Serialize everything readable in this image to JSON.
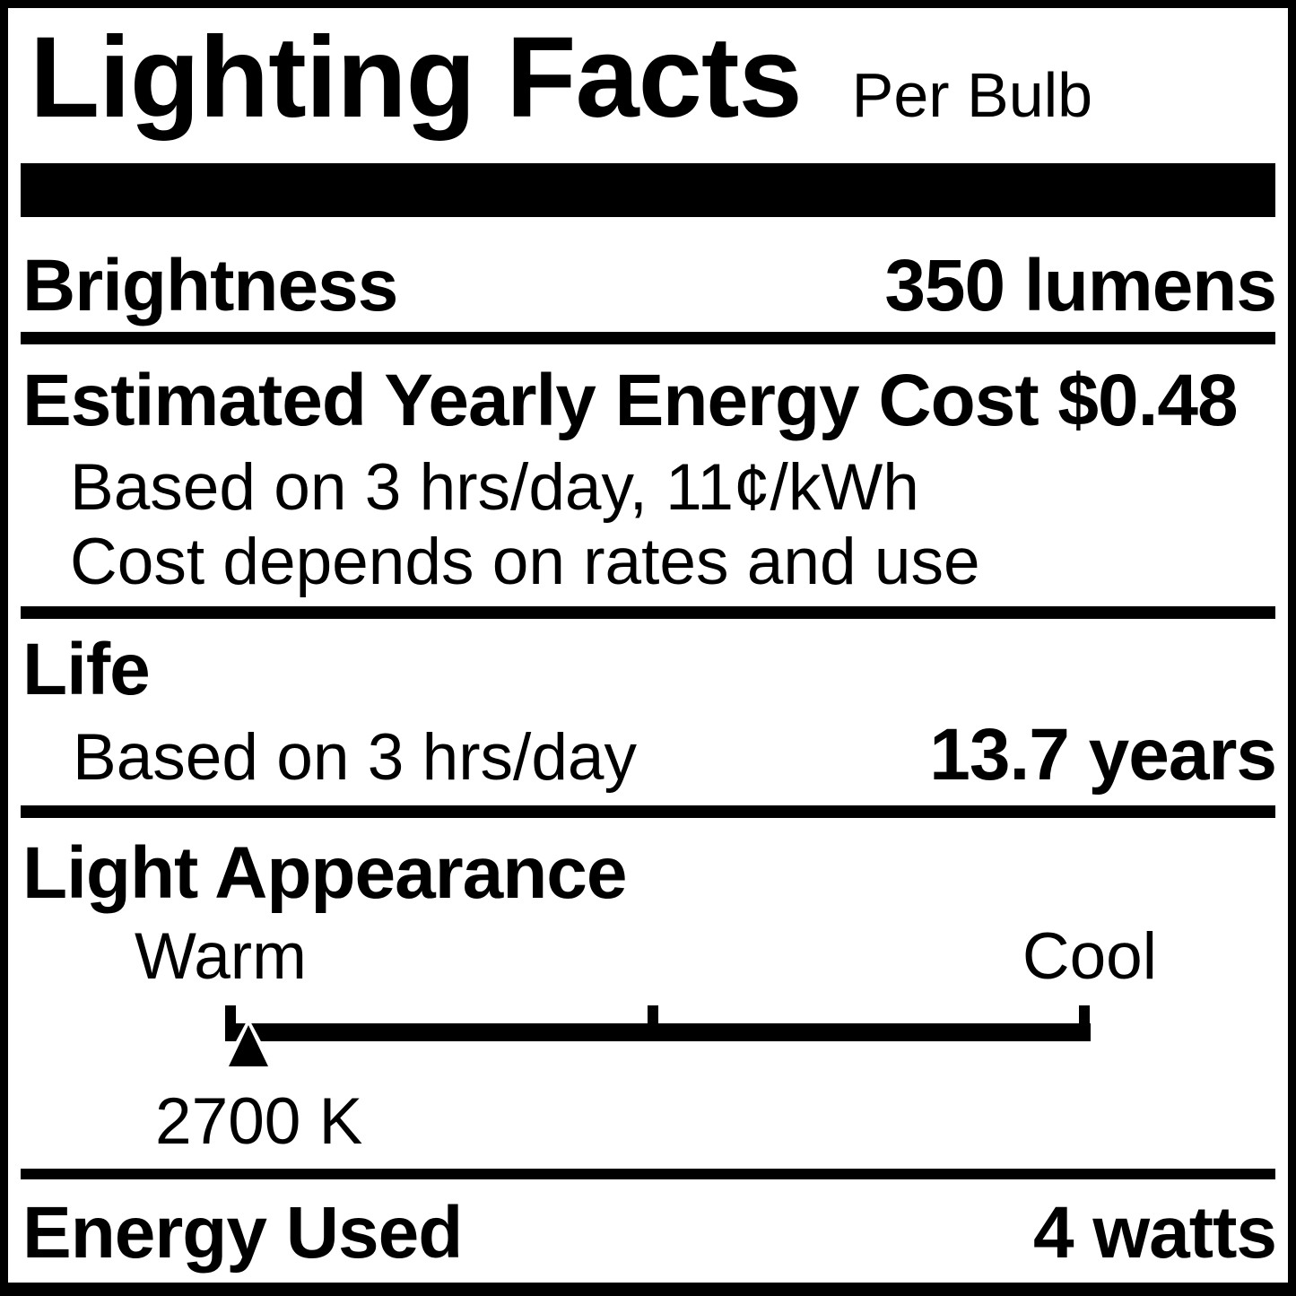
{
  "label": {
    "title": "Lighting Facts",
    "subtitle": "Per Bulb",
    "brightness": {
      "name": "Brightness",
      "value": "350 lumens"
    },
    "energy_cost": {
      "heading": "Estimated Yearly Energy Cost $0.48",
      "basis": "Based on 3 hrs/day, 11¢/kWh",
      "note": "Cost depends on rates and use"
    },
    "life": {
      "heading": "Life",
      "basis": "Based on 3 hrs/day",
      "value": "13.7 years"
    },
    "light_appearance": {
      "heading": "Light Appearance",
      "warm_label": "Warm",
      "cool_label": "Cool",
      "marker_value": "2700 K"
    },
    "energy_used": {
      "name": "Energy Used",
      "value": "4 watts"
    },
    "colors": {
      "ink": "#000000",
      "paper": "#ffffff"
    }
  }
}
